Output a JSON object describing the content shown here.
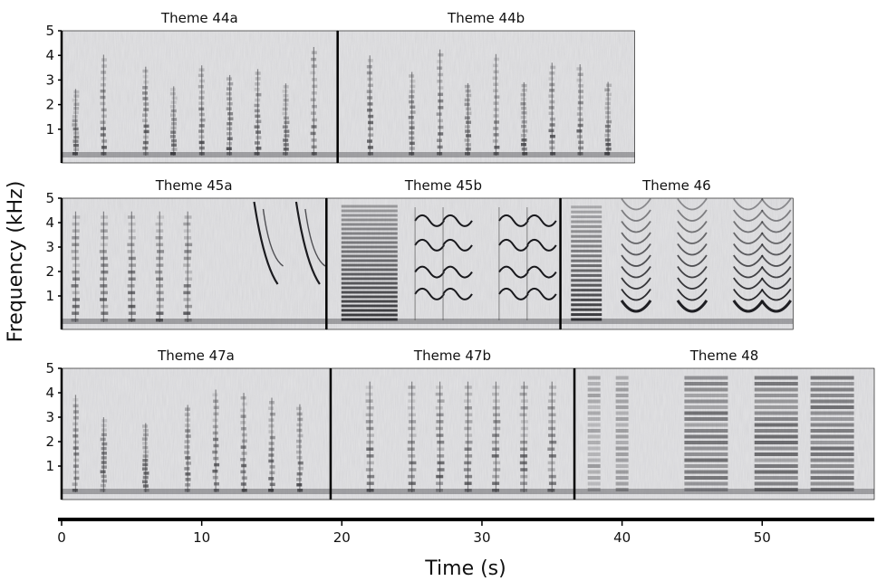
{
  "chart_data": {
    "type": "spectrogram",
    "ylabel": "Frequency (kHz)",
    "xlabel": "Time (s)",
    "y_ticks": [
      "1",
      "2",
      "3",
      "4",
      "5"
    ],
    "x_ticks": [
      "0",
      "10",
      "20",
      "30",
      "40",
      "50"
    ],
    "x_tick_values": [
      0,
      10,
      20,
      30,
      40,
      50
    ],
    "xlim": [
      0,
      58
    ],
    "ylim_khz": [
      0,
      5
    ],
    "panels": [
      {
        "title": "Theme 44a",
        "row": 0,
        "t_start": 0.0,
        "t_end": 19.7,
        "style": "calls",
        "calls": [
          1,
          3,
          6,
          8,
          10,
          12,
          14,
          16,
          18
        ]
      },
      {
        "title": "Theme 44b",
        "row": 0,
        "t_start": 19.7,
        "t_end": 40.9,
        "style": "calls",
        "calls": [
          22,
          25,
          27,
          29,
          31,
          33,
          35,
          37,
          39
        ]
      },
      {
        "title": "Theme 45a",
        "row": 1,
        "t_start": 0.0,
        "t_end": 18.9,
        "style": "mixed",
        "calls": [
          1,
          3,
          5,
          7,
          9,
          14,
          17
        ]
      },
      {
        "title": "Theme 45b",
        "row": 1,
        "t_start": 18.9,
        "t_end": 35.6,
        "style": "harmonic",
        "calls": [
          21,
          26,
          28,
          32,
          34
        ]
      },
      {
        "title": "Theme 46",
        "row": 1,
        "t_start": 35.6,
        "t_end": 52.2,
        "style": "arcs",
        "calls": [
          37,
          41,
          45,
          49,
          51
        ]
      },
      {
        "title": "Theme 47a",
        "row": 2,
        "t_start": 0.0,
        "t_end": 19.2,
        "style": "calls",
        "calls": [
          1,
          3,
          6,
          9,
          11,
          13,
          15,
          17
        ]
      },
      {
        "title": "Theme 47b",
        "row": 2,
        "t_start": 19.2,
        "t_end": 36.6,
        "style": "bars",
        "calls": [
          22,
          25,
          27,
          29,
          31,
          33,
          35
        ]
      },
      {
        "title": "Theme 48",
        "row": 2,
        "t_start": 36.6,
        "t_end": 58.0,
        "style": "broadband",
        "calls": [
          38,
          40,
          46,
          51,
          55
        ]
      }
    ]
  }
}
